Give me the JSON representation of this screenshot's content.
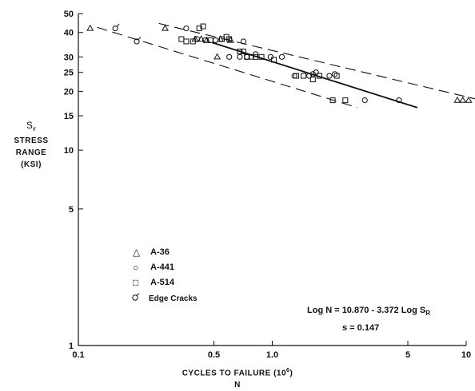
{
  "chart_data": {
    "type": "scatter",
    "x_scale": "log",
    "y_scale": "log",
    "xlim": [
      0.1,
      10
    ],
    "ylim": [
      1,
      50
    ],
    "x_ticks": [
      "0.1",
      "0.5",
      "1.0",
      "5",
      "10"
    ],
    "y_ticks": [
      "1",
      "5",
      "10",
      "15",
      "20",
      "25",
      "30",
      "40",
      "50"
    ],
    "xlabel": "CYCLES TO FAILURE (10",
    "xlabel_exp": "6",
    "xlabel_close": ")",
    "xlabel_var": "N",
    "ylabel": {
      "symbol": "S",
      "symbol_sub": "r",
      "line1": "STRESS",
      "line2": "RANGE",
      "line3": "(KSI)"
    },
    "series": [
      {
        "name": "A-36",
        "marker": "triangle",
        "points": [
          [
            0.115,
            42
          ],
          [
            0.28,
            42
          ],
          [
            0.4,
            37
          ],
          [
            0.43,
            37
          ],
          [
            0.46,
            36.5
          ],
          [
            0.52,
            30
          ],
          [
            0.54,
            37
          ],
          [
            0.61,
            36.5
          ],
          [
            9.0,
            18
          ],
          [
            9.6,
            18
          ],
          [
            10.3,
            18
          ]
        ]
      },
      {
        "name": "A-441",
        "marker": "circle",
        "points": [
          [
            0.36,
            42
          ],
          [
            0.41,
            37
          ],
          [
            0.45,
            36.5
          ],
          [
            0.51,
            36.5
          ],
          [
            0.6,
            30
          ],
          [
            0.68,
            30
          ],
          [
            0.71,
            36
          ],
          [
            0.74,
            30
          ],
          [
            0.78,
            30
          ],
          [
            0.82,
            31
          ],
          [
            0.98,
            30
          ],
          [
            1.12,
            30
          ],
          [
            1.3,
            24
          ],
          [
            1.55,
            24
          ],
          [
            1.62,
            24.5
          ],
          [
            1.68,
            25
          ],
          [
            1.97,
            24
          ],
          [
            2.1,
            24.5
          ],
          [
            3.0,
            18
          ],
          [
            4.5,
            18
          ]
        ]
      },
      {
        "name": "A-514",
        "marker": "square",
        "points": [
          [
            0.34,
            37
          ],
          [
            0.36,
            36
          ],
          [
            0.39,
            36
          ],
          [
            0.42,
            42
          ],
          [
            0.44,
            43
          ],
          [
            0.48,
            36.5
          ],
          [
            0.55,
            37
          ],
          [
            0.58,
            38
          ],
          [
            0.6,
            37
          ],
          [
            0.68,
            32
          ],
          [
            0.71,
            32
          ],
          [
            0.74,
            30
          ],
          [
            0.82,
            30
          ],
          [
            0.88,
            30
          ],
          [
            1.02,
            29
          ],
          [
            1.33,
            24
          ],
          [
            1.45,
            24
          ],
          [
            1.62,
            23
          ],
          [
            1.75,
            24
          ],
          [
            2.15,
            24
          ],
          [
            2.05,
            18
          ],
          [
            2.38,
            18
          ]
        ]
      },
      {
        "name": "Edge Cracks",
        "marker": "edge-crack",
        "points": [
          [
            0.155,
            42
          ],
          [
            0.2,
            36
          ]
        ]
      }
    ],
    "regression": {
      "label": "Log N = 10.870 - 3.372 Log S",
      "label_sub": "R",
      "std": "s = 0.147",
      "mean_line": [
        [
          0.49,
          35.5
        ],
        [
          5.6,
          16.5
        ]
      ],
      "upper_band": [
        [
          0.26,
          44.5
        ],
        [
          12.5,
          17.8
        ]
      ],
      "lower_band": [
        [
          0.125,
          42.5
        ],
        [
          2.75,
          16.5
        ]
      ]
    }
  }
}
